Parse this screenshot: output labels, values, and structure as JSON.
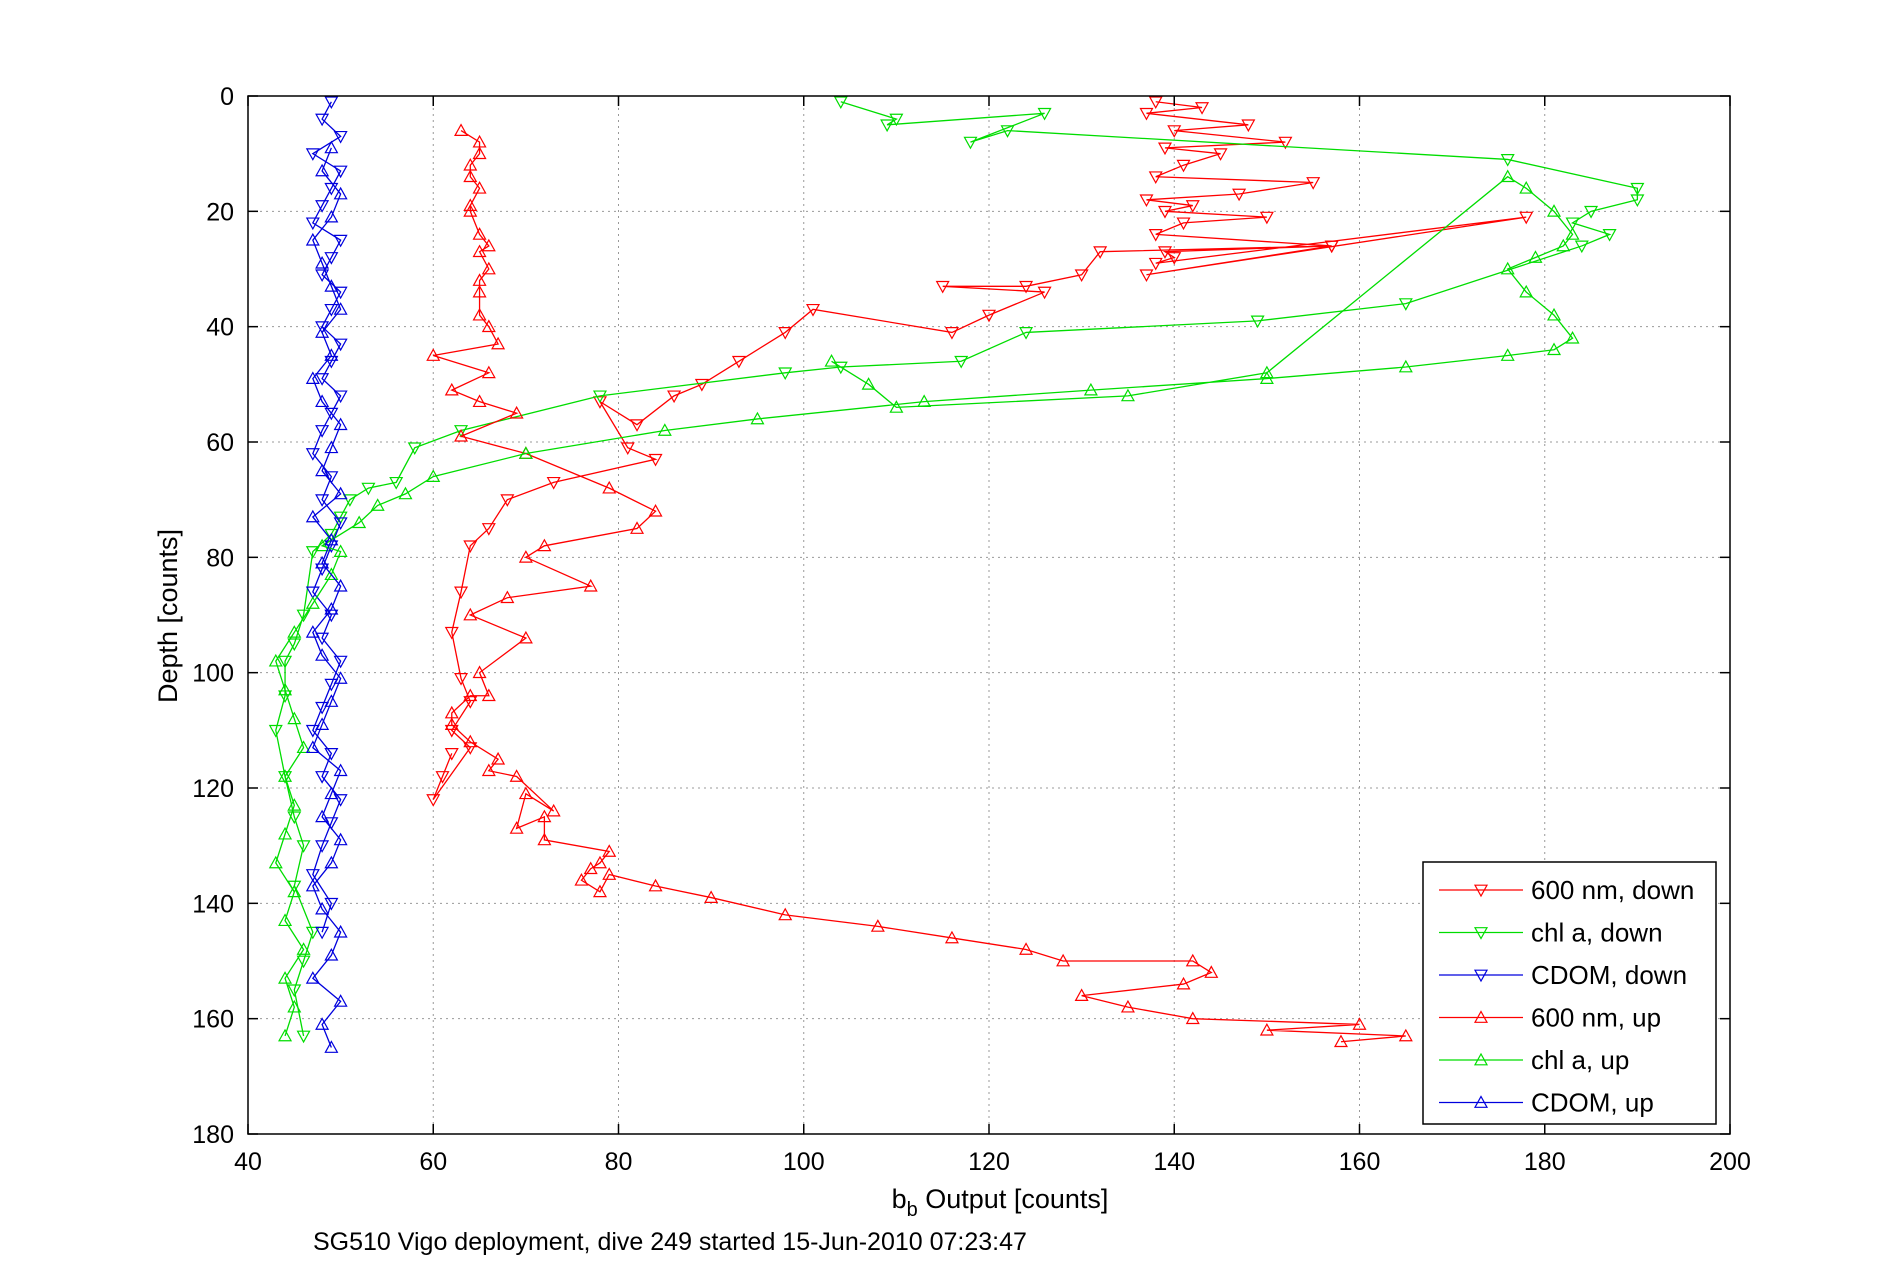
{
  "chart_data": {
    "type": "line",
    "xlabel_main": "b",
    "xlabel_sub": "b",
    "xlabel_rest": " Output [counts]",
    "ylabel": "Depth [counts]",
    "caption": "SG510 Vigo deployment, dive 249 started 15-Jun-2010 07:23:47",
    "xlim": [
      40,
      200
    ],
    "ylim": [
      0,
      180
    ],
    "y_reversed": true,
    "grid": true,
    "legend_position": "bottom-right",
    "x_ticks": [
      "40",
      "60",
      "80",
      "100",
      "120",
      "140",
      "160",
      "180",
      "200"
    ],
    "y_ticks": [
      "0",
      "20",
      "40",
      "60",
      "80",
      "100",
      "120",
      "140",
      "160",
      "180"
    ],
    "series": [
      {
        "name": "600 nm, down",
        "color": "#ff0000",
        "marker": "triangle-down",
        "x": [
          138,
          143,
          137,
          148,
          140,
          152,
          139,
          145,
          141,
          138,
          155,
          147,
          137,
          142,
          139,
          150,
          141,
          138,
          157,
          139,
          140,
          138,
          178,
          137,
          157,
          132,
          130,
          124,
          115,
          126,
          120,
          116,
          101,
          98,
          93,
          89,
          86,
          82,
          78,
          81,
          84,
          73,
          68,
          66,
          64,
          63,
          62,
          63,
          64,
          62,
          64,
          60,
          61,
          62
        ],
        "y": [
          1,
          2,
          3,
          5,
          6,
          8,
          9,
          10,
          12,
          14,
          15,
          17,
          18,
          19,
          20,
          21,
          22,
          24,
          26,
          27,
          28,
          29,
          21,
          31,
          26,
          27,
          31,
          33,
          33,
          34,
          38,
          41,
          37,
          41,
          46,
          50,
          52,
          57,
          53,
          61,
          63,
          67,
          70,
          75,
          78,
          86,
          93,
          101,
          105,
          110,
          113,
          122,
          118,
          114
        ]
      },
      {
        "name": "chl a, down",
        "color": "#00dd00",
        "marker": "triangle-down",
        "x": [
          104,
          110,
          109,
          126,
          118,
          122,
          176,
          190,
          190,
          185,
          183,
          187,
          184,
          165,
          149,
          124,
          117,
          104,
          98,
          78,
          63,
          58,
          56,
          53,
          51,
          50,
          49,
          47,
          46,
          45,
          44,
          44,
          43,
          44,
          45,
          46,
          45,
          47,
          46,
          45,
          46
        ],
        "y": [
          1,
          4,
          5,
          3,
          8,
          6,
          11,
          16,
          18,
          20,
          22,
          24,
          26,
          36,
          39,
          41,
          46,
          47,
          48,
          52,
          58,
          61,
          67,
          68,
          70,
          73,
          76,
          79,
          90,
          95,
          98,
          104,
          110,
          118,
          125,
          130,
          137,
          145,
          150,
          155,
          163
        ]
      },
      {
        "name": "CDOM, down",
        "color": "#0000dd",
        "marker": "triangle-down",
        "x": [
          49,
          48,
          50,
          47,
          50,
          49,
          48,
          47,
          50,
          49,
          48,
          50,
          49,
          48,
          50,
          49,
          48,
          50,
          49,
          48,
          47,
          49,
          48,
          50,
          49,
          48,
          47,
          49,
          48,
          50,
          49,
          48,
          47,
          49,
          48,
          50,
          49,
          48,
          47,
          49,
          48
        ],
        "y": [
          1,
          4,
          7,
          10,
          13,
          16,
          19,
          22,
          25,
          28,
          31,
          34,
          37,
          40,
          43,
          46,
          49,
          52,
          55,
          58,
          62,
          66,
          70,
          74,
          78,
          82,
          86,
          90,
          94,
          98,
          102,
          106,
          110,
          114,
          118,
          122,
          126,
          130,
          135,
          140,
          145
        ]
      },
      {
        "name": "600 nm, up",
        "color": "#ff0000",
        "marker": "triangle-up",
        "x": [
          158,
          165,
          150,
          160,
          142,
          135,
          130,
          141,
          144,
          142,
          128,
          124,
          116,
          108,
          98,
          90,
          84,
          79,
          78,
          76,
          77,
          78,
          79,
          72,
          72,
          69,
          70,
          73,
          69,
          66,
          67,
          64,
          62,
          62,
          64,
          66,
          65,
          70,
          64,
          68,
          77,
          70,
          72,
          82,
          84,
          79,
          70,
          63,
          69,
          65,
          62,
          66,
          60,
          67,
          66,
          65,
          65,
          65,
          66,
          65,
          66,
          65,
          64,
          64,
          65,
          64,
          64,
          65,
          65,
          63
        ],
        "y": [
          164,
          163,
          162,
          161,
          160,
          158,
          156,
          154,
          152,
          150,
          150,
          148,
          146,
          144,
          142,
          139,
          137,
          135,
          138,
          136,
          134,
          133,
          131,
          129,
          125,
          127,
          121,
          124,
          118,
          117,
          115,
          112,
          109,
          107,
          104,
          104,
          100,
          94,
          90,
          87,
          85,
          80,
          78,
          75,
          72,
          68,
          62,
          59,
          55,
          53,
          51,
          48,
          45,
          43,
          40,
          38,
          34,
          32,
          30,
          27,
          26,
          24,
          20,
          19,
          16,
          14,
          12,
          10,
          8,
          6
        ]
      },
      {
        "name": "chl a, up",
        "color": "#00dd00",
        "marker": "triangle-up",
        "x": [
          44,
          45,
          44,
          46,
          44,
          45,
          43,
          44,
          45,
          44,
          46,
          45,
          44,
          43,
          45,
          47,
          49,
          50,
          48,
          52,
          54,
          57,
          60,
          70,
          85,
          95,
          113,
          131,
          150,
          165,
          176,
          181,
          183,
          181,
          178,
          176,
          179,
          182,
          183,
          181,
          178,
          176,
          150,
          135,
          110,
          107,
          103
        ],
        "y": [
          163,
          158,
          153,
          148,
          143,
          138,
          133,
          128,
          123,
          118,
          113,
          108,
          103,
          98,
          93,
          88,
          83,
          79,
          78,
          74,
          71,
          69,
          66,
          62,
          58,
          56,
          53,
          51,
          49,
          47,
          45,
          44,
          42,
          38,
          34,
          30,
          28,
          26,
          24,
          20,
          16,
          14,
          48,
          52,
          54,
          50,
          46
        ]
      },
      {
        "name": "CDOM, up",
        "color": "#0000dd",
        "marker": "triangle-up",
        "x": [
          49,
          48,
          50,
          47,
          49,
          50,
          48,
          47,
          49,
          50,
          48,
          49,
          50,
          47,
          48,
          49,
          50,
          48,
          47,
          49,
          50,
          48,
          49,
          47,
          50,
          48,
          49,
          50,
          48,
          47,
          49,
          48,
          50,
          49,
          48,
          47,
          49,
          50,
          48,
          49
        ],
        "y": [
          165,
          161,
          157,
          153,
          149,
          145,
          141,
          137,
          133,
          129,
          125,
          121,
          117,
          113,
          109,
          105,
          101,
          97,
          93,
          89,
          85,
          81,
          77,
          73,
          69,
          65,
          61,
          57,
          53,
          49,
          45,
          41,
          37,
          33,
          29,
          25,
          21,
          17,
          13,
          9
        ]
      }
    ]
  }
}
